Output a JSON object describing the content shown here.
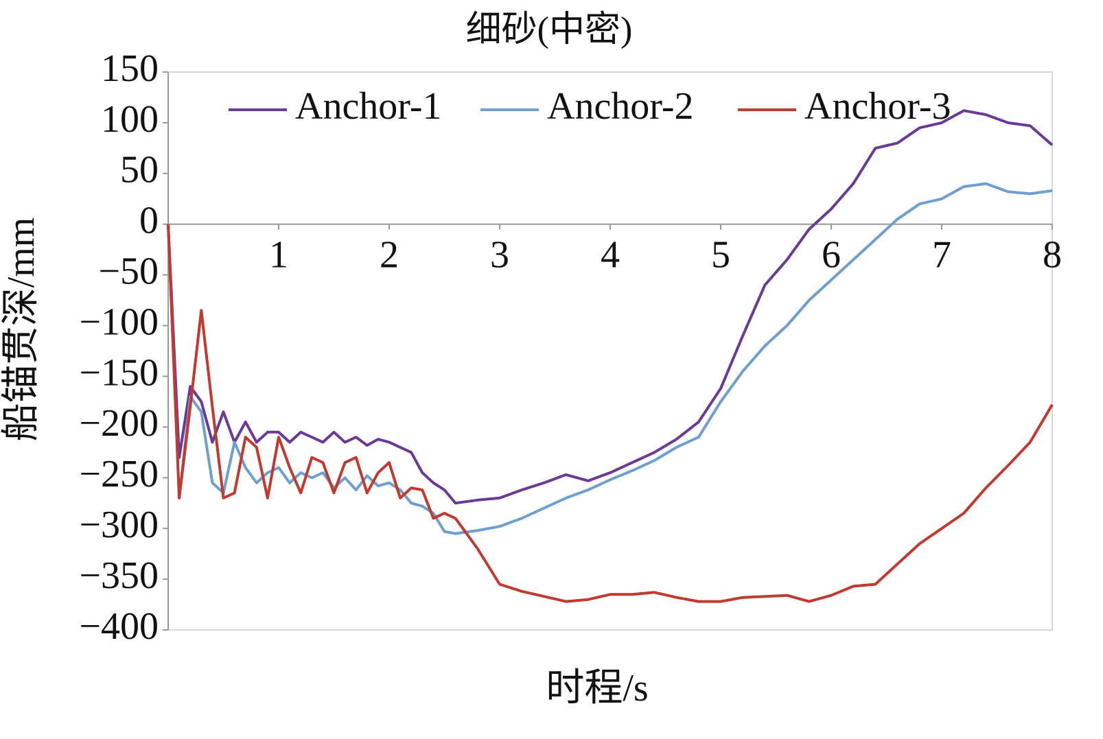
{
  "chart_data": {
    "type": "line",
    "title": "细砂(中密)",
    "x_label": "时程/s",
    "y_label": "船锚贯深/mm",
    "x": [
      0,
      0.1,
      0.2,
      0.3,
      0.4,
      0.5,
      0.6,
      0.7,
      0.8,
      0.9,
      1.0,
      1.1,
      1.2,
      1.3,
      1.4,
      1.5,
      1.6,
      1.7,
      1.8,
      1.9,
      2.0,
      2.1,
      2.2,
      2.3,
      2.4,
      2.5,
      2.6,
      2.8,
      3.0,
      3.2,
      3.4,
      3.6,
      3.8,
      4.0,
      4.2,
      4.4,
      4.6,
      4.8,
      5.0,
      5.2,
      5.4,
      5.6,
      5.8,
      6.0,
      6.2,
      6.4,
      6.6,
      6.8,
      7.0,
      7.2,
      7.4,
      7.6,
      7.8,
      8.0
    ],
    "series": [
      {
        "name": "Anchor-1",
        "color": "#6b3a96",
        "values": [
          0,
          -230,
          -160,
          -175,
          -215,
          -185,
          -215,
          -195,
          -215,
          -205,
          -205,
          -215,
          -205,
          -210,
          -215,
          -205,
          -215,
          -210,
          -218,
          -212,
          -215,
          -220,
          -225,
          -245,
          -255,
          -262,
          -275,
          -272,
          -270,
          -262,
          -255,
          -247,
          -253,
          -245,
          -235,
          -225,
          -212,
          -195,
          -162,
          -110,
          -60,
          -35,
          -5,
          15,
          40,
          75,
          80,
          95,
          100,
          112,
          108,
          100,
          97,
          78
        ]
      },
      {
        "name": "Anchor-2",
        "color": "#6f9fd0",
        "values": [
          0,
          -270,
          -170,
          -185,
          -255,
          -265,
          -215,
          -240,
          -255,
          -245,
          -240,
          -255,
          -245,
          -250,
          -245,
          -260,
          -250,
          -262,
          -248,
          -258,
          -255,
          -262,
          -275,
          -278,
          -285,
          -303,
          -305,
          -302,
          -298,
          -290,
          -280,
          -270,
          -262,
          -252,
          -243,
          -233,
          -220,
          -210,
          -175,
          -145,
          -120,
          -100,
          -75,
          -55,
          -35,
          -15,
          5,
          20,
          25,
          37,
          40,
          32,
          30,
          33
        ]
      },
      {
        "name": "Anchor-3",
        "color": "#c23a2f",
        "values": [
          0,
          -270,
          -180,
          -85,
          -180,
          -270,
          -265,
          -210,
          -220,
          -270,
          -210,
          -240,
          -265,
          -230,
          -235,
          -265,
          -235,
          -230,
          -265,
          -245,
          -235,
          -270,
          -260,
          -262,
          -290,
          -285,
          -290,
          -320,
          -355,
          -362,
          -367,
          -372,
          -370,
          -365,
          -365,
          -363,
          -368,
          -372,
          -372,
          -368,
          -367,
          -366,
          -372,
          -366,
          -357,
          -355,
          -335,
          -315,
          -300,
          -285,
          -260,
          -238,
          -215,
          -178
        ]
      }
    ],
    "xlim": [
      0,
      8
    ],
    "xticks": [
      1,
      2,
      3,
      4,
      5,
      6,
      7,
      8
    ],
    "ylim": [
      -400,
      150
    ],
    "yticks": [
      {
        "value": -400,
        "label": "−400"
      },
      {
        "value": -350,
        "label": "−350"
      },
      {
        "value": -300,
        "label": "−300"
      },
      {
        "value": -250,
        "label": "−250"
      },
      {
        "value": -200,
        "label": "−200"
      },
      {
        "value": -150,
        "label": "−150"
      },
      {
        "value": -100,
        "label": "−100"
      },
      {
        "value": -50,
        "label": "−50"
      },
      0,
      50,
      100,
      150
    ],
    "grid": false,
    "legend": "top"
  }
}
